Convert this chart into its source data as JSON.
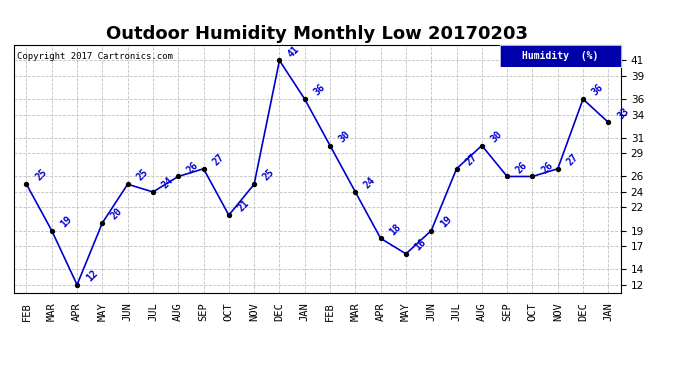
{
  "title": "Outdoor Humidity Monthly Low 20170203",
  "copyright_text": "Copyright 2017 Cartronics.com",
  "legend_label": "Humidity  (%)",
  "x_labels": [
    "FEB",
    "MAR",
    "APR",
    "MAY",
    "JUN",
    "JUL",
    "AUG",
    "SEP",
    "OCT",
    "NOV",
    "DEC",
    "JAN",
    "FEB",
    "MAR",
    "APR",
    "MAY",
    "JUN",
    "JUL",
    "AUG",
    "SEP",
    "OCT",
    "NOV",
    "DEC",
    "JAN"
  ],
  "y_values": [
    25,
    19,
    12,
    20,
    25,
    24,
    26,
    27,
    21,
    25,
    41,
    36,
    30,
    24,
    18,
    16,
    19,
    27,
    30,
    26,
    26,
    27,
    36,
    33
  ],
  "ylim": [
    11,
    43
  ],
  "yticks": [
    12,
    14,
    17,
    19,
    22,
    24,
    26,
    29,
    31,
    34,
    36,
    39,
    41
  ],
  "line_color": "#0000cc",
  "marker_color": "#000000",
  "grid_color": "#c0c0c0",
  "background_color": "#ffffff",
  "title_fontsize": 13,
  "tick_fontsize": 7.5,
  "legend_bg": "#0000aa",
  "legend_text_color": "#ffffff",
  "annotation_fontsize": 7
}
